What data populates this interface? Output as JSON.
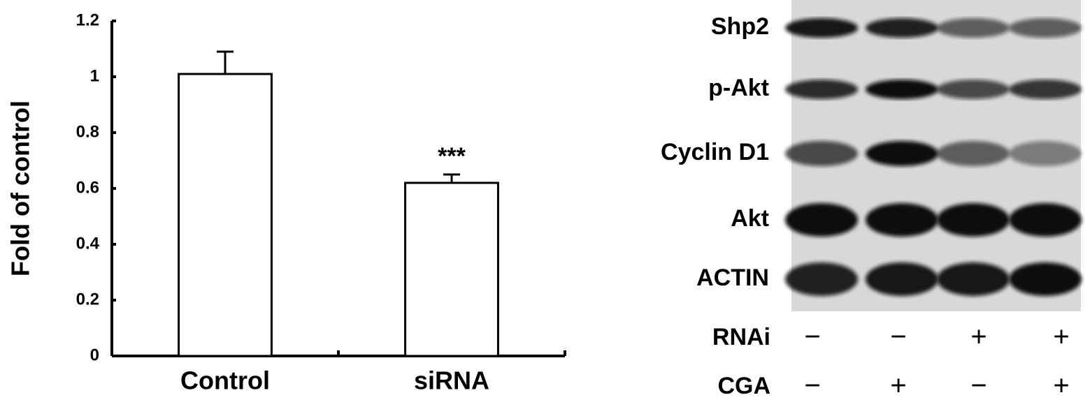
{
  "chart_data": {
    "type": "bar",
    "ylabel": "Fold of control",
    "categories": [
      "Control",
      "siRNA"
    ],
    "values": [
      1.01,
      0.62
    ],
    "errors": [
      0.08,
      0.03
    ],
    "annotations": [
      null,
      "***"
    ],
    "color": "#ffffff",
    "ylim": [
      0,
      1.2
    ],
    "yticks": [
      0,
      0.2,
      0.4,
      0.6,
      0.8,
      1,
      1.2
    ]
  },
  "blot": {
    "rows": [
      "Shp2",
      "p-Akt",
      "Cyclin D1",
      "Akt",
      "ACTIN"
    ],
    "conditions": [
      {
        "name": "RNAi",
        "signs": [
          "−",
          "−",
          "+",
          "+"
        ]
      },
      {
        "name": "CGA",
        "signs": [
          "−",
          "+",
          "−",
          "+"
        ]
      }
    ]
  }
}
